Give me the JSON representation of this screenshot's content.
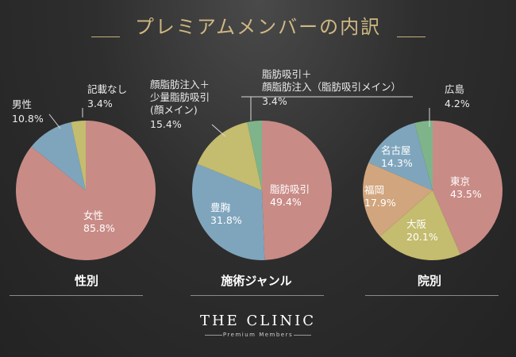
{
  "title": "プレミアムメンバーの内訳",
  "logo": {
    "name": "THE CLINIC",
    "subtitle": "Premium Members"
  },
  "colors": {
    "pink": "#c98b86",
    "blue": "#7fa5bd",
    "olive": "#c4bc6e",
    "green": "#7fb48a",
    "tan": "#d1a57d",
    "title_gold": "#cfb883",
    "background": "#2a2a2a"
  },
  "chart_data": [
    {
      "type": "pie",
      "title": "性別",
      "slices": [
        {
          "label": "女性",
          "value": 85.8,
          "display": "85.8%",
          "color": "#c98b86"
        },
        {
          "label": "男性",
          "value": 10.8,
          "display": "10.8%",
          "color": "#7fa5bd"
        },
        {
          "label": "記載なし",
          "value": 3.4,
          "display": "3.4%",
          "color": "#c4bc6e"
        }
      ]
    },
    {
      "type": "pie",
      "title": "施術ジャンル",
      "slices": [
        {
          "label": "脂肪吸引",
          "value": 49.4,
          "display": "49.4%",
          "color": "#c98b86"
        },
        {
          "label": "豊胸",
          "value": 31.8,
          "display": "31.8%",
          "color": "#7fa5bd"
        },
        {
          "label": "顔脂肪注入＋少量脂肪吸引(顔メイン)",
          "label_lines": [
            "顔脂肪注入＋",
            "少量脂肪吸引",
            "(顔メイン)"
          ],
          "value": 15.4,
          "display": "15.4%",
          "color": "#c4bc6e"
        },
        {
          "label": "脂肪吸引＋顔脂肪注入(脂肪吸引メイン)",
          "label_lines": [
            "脂肪吸引＋",
            "顔脂肪注入（脂肪吸引メイン）"
          ],
          "value": 3.4,
          "display": "3.4%",
          "color": "#7fb48a"
        }
      ]
    },
    {
      "type": "pie",
      "title": "院別",
      "slices": [
        {
          "label": "東京",
          "value": 43.5,
          "display": "43.5%",
          "color": "#c98b86"
        },
        {
          "label": "大阪",
          "value": 20.1,
          "display": "20.1%",
          "color": "#c4bc6e"
        },
        {
          "label": "福岡",
          "value": 17.9,
          "display": "17.9%",
          "color": "#d1a57d"
        },
        {
          "label": "名古屋",
          "value": 14.3,
          "display": "14.3%",
          "color": "#7fa5bd"
        },
        {
          "label": "広島",
          "value": 4.2,
          "display": "4.2%",
          "color": "#7fb48a"
        }
      ]
    }
  ]
}
